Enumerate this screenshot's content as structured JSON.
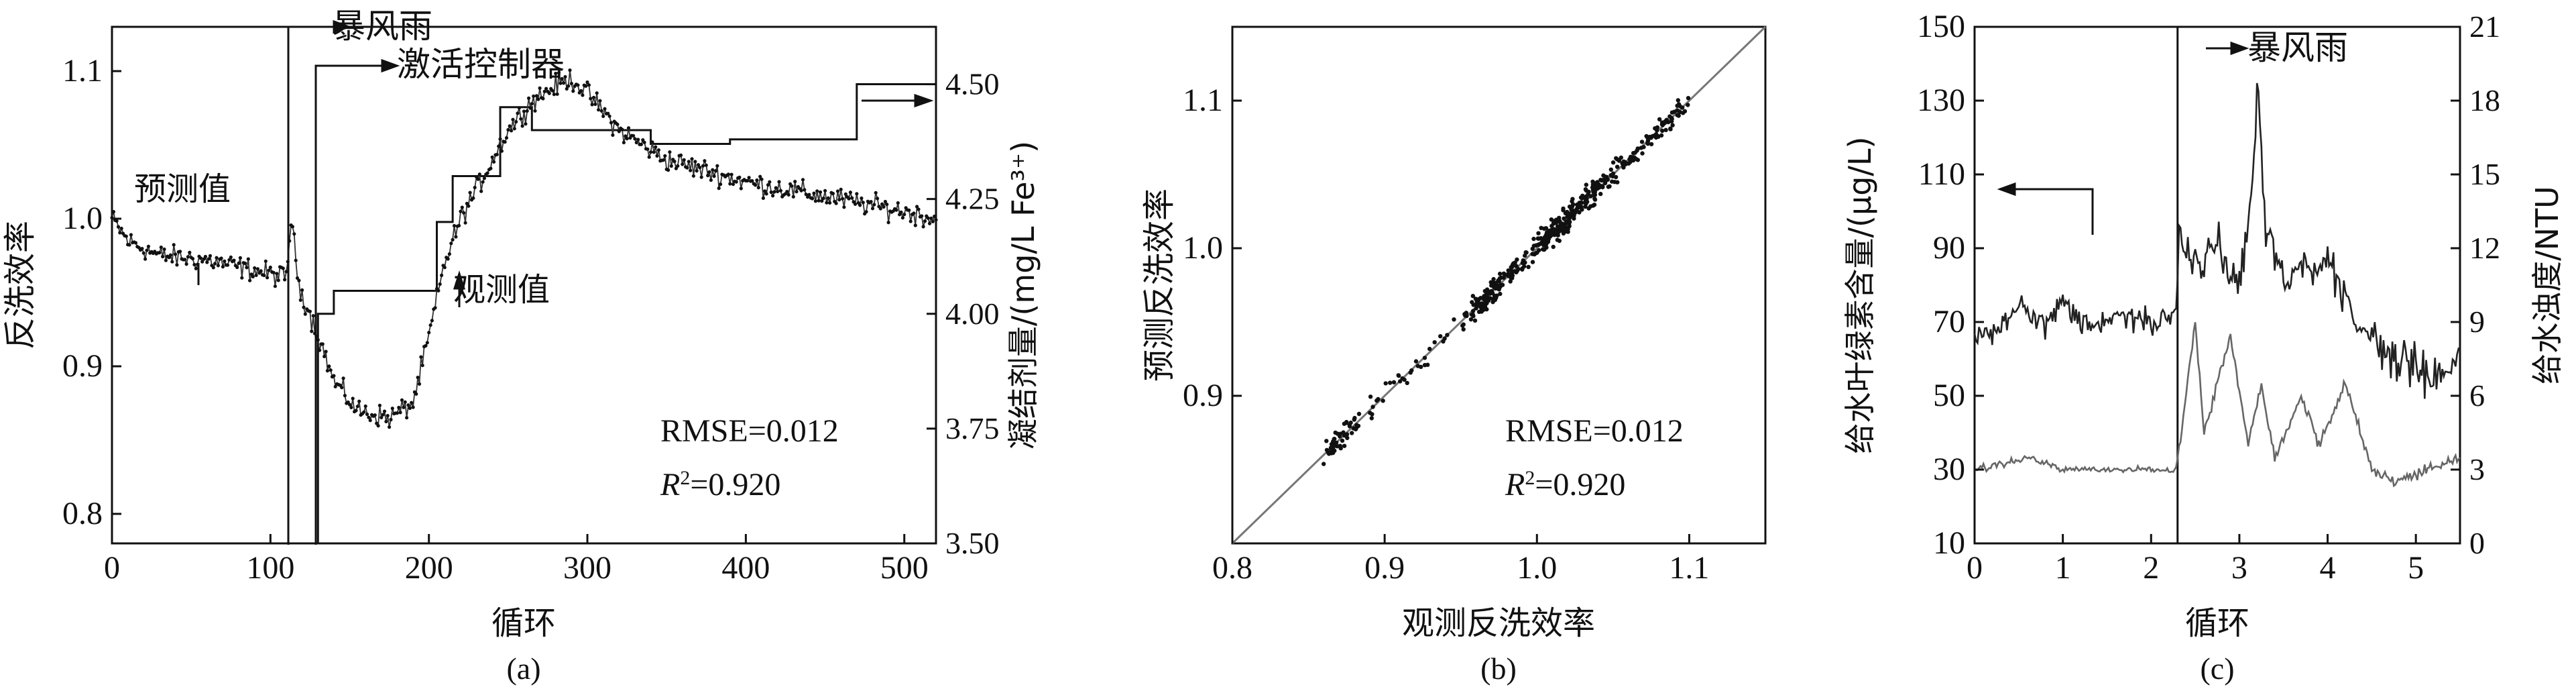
{
  "chart_data": [
    {
      "panel_label": "(a)",
      "type": "line",
      "xlabel": "循环",
      "ylabel": "反洗效率",
      "y2label": "凝结剂量/(mg/L Fe³⁺)",
      "xlim": [
        0,
        520
      ],
      "ylim": [
        0.78,
        1.13
      ],
      "y2lim": [
        3.5,
        4.625
      ],
      "xticks": [
        "0",
        "100",
        "200",
        "300",
        "400",
        "500"
      ],
      "yticks": [
        "0.8",
        "0.9",
        "1.0",
        "1.1"
      ],
      "y2ticks": [
        "3.50",
        "3.75",
        "4.00",
        "4.25",
        "4.50"
      ],
      "annotations": {
        "storm": "暴风雨",
        "controller": "激活控制器",
        "predicted": "预测值",
        "observed": "观测值",
        "rmse": "RMSE=0.012",
        "r2_prefix": "R",
        "r2_value": "=0.920"
      },
      "events": {
        "storm_x": 112,
        "controller_x": 128
      },
      "efficiency_profile": {
        "x": [
          0,
          10,
          30,
          60,
          90,
          110,
          113,
          118,
          125,
          132,
          140,
          155,
          175,
          190,
          200,
          210,
          220,
          235,
          250,
          265,
          280,
          290,
          300,
          320,
          350,
          400,
          450,
          500,
          520
        ],
        "y": [
          1.0,
          0.985,
          0.975,
          0.972,
          0.965,
          0.96,
          1.0,
          0.955,
          0.935,
          0.915,
          0.89,
          0.87,
          0.865,
          0.875,
          0.92,
          0.97,
          1.0,
          1.03,
          1.06,
          1.08,
          1.09,
          1.095,
          1.085,
          1.06,
          1.04,
          1.025,
          1.015,
          1.005,
          1.0
        ]
      },
      "coagulant_dose": {
        "x": [
          0,
          130,
          130,
          140,
          140,
          205,
          205,
          215,
          215,
          245,
          245,
          265,
          265,
          340,
          340,
          390,
          390,
          470,
          470,
          520
        ],
        "y": [
          3.5,
          3.5,
          4.0,
          4.0,
          4.05,
          4.05,
          4.2,
          4.2,
          4.3,
          4.3,
          4.45,
          4.45,
          4.4,
          4.4,
          4.37,
          4.37,
          4.38,
          4.38,
          4.5,
          4.5
        ]
      }
    },
    {
      "panel_label": "(b)",
      "type": "scatter",
      "xlabel": "观测反洗效率",
      "ylabel": "预测反洗效率",
      "xlim": [
        0.8,
        1.15
      ],
      "ylim": [
        0.8,
        1.15
      ],
      "xticks": [
        "0.8",
        "0.9",
        "1.0",
        "1.1"
      ],
      "yticks": [
        "0.9",
        "1.0",
        "1.1"
      ],
      "annotations": {
        "rmse": "RMSE=0.012",
        "r2_prefix": "R",
        "r2_value": "=0.920"
      },
      "identity_line": true,
      "points_summary": {
        "n": 520,
        "x_range": [
          0.845,
          1.115
        ],
        "rmse": 0.012
      }
    },
    {
      "panel_label": "(c)",
      "type": "line",
      "xlabel": "循环",
      "ylabel": "给水叶绿素含量/(μg/L)",
      "y2label": "给水浊度/NTU",
      "xlim": [
        0,
        5.5
      ],
      "ylim": [
        10,
        150
      ],
      "y2lim": [
        0,
        21
      ],
      "xticks": [
        "0",
        "1",
        "2",
        "3",
        "4",
        "5"
      ],
      "yticks": [
        "10",
        "30",
        "50",
        "70",
        "90",
        "110",
        "130",
        "150"
      ],
      "y2ticks": [
        "0",
        "3",
        "6",
        "9",
        "12",
        "15",
        "18",
        "21"
      ],
      "annotations": {
        "storm": "暴风雨"
      },
      "events": {
        "storm_x": 2.3
      },
      "series": [
        {
          "name": "给水叶绿素含量",
          "axis": "left",
          "x": [
            0,
            0.3,
            0.5,
            0.8,
            1.0,
            1.3,
            1.6,
            2.0,
            2.28,
            2.32,
            2.5,
            2.8,
            3.0,
            3.15,
            3.2,
            3.3,
            3.5,
            3.8,
            4.0,
            4.3,
            4.6,
            5.0,
            5.3,
            5.5
          ],
          "y": [
            65,
            68,
            75,
            70,
            76,
            68,
            72,
            70,
            72,
            95,
            85,
            90,
            80,
            105,
            137,
            95,
            82,
            85,
            88,
            70,
            63,
            57,
            55,
            62
          ]
        },
        {
          "name": "给水浊度",
          "axis": "right",
          "x": [
            0,
            0.3,
            0.6,
            1.0,
            1.5,
            2.0,
            2.28,
            2.32,
            2.5,
            2.6,
            2.9,
            3.1,
            3.25,
            3.4,
            3.7,
            3.9,
            4.2,
            4.5,
            4.8,
            5.1,
            5.5
          ],
          "y": [
            3.0,
            3.2,
            3.5,
            3.0,
            3.0,
            3.0,
            3.0,
            4.0,
            9.0,
            4.5,
            8.5,
            4.0,
            6.5,
            3.5,
            6.0,
            4.0,
            6.5,
            3.0,
            2.5,
            3.0,
            3.5
          ]
        }
      ]
    }
  ]
}
